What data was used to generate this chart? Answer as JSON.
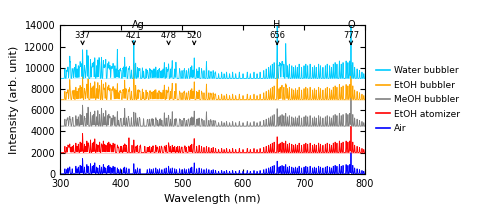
{
  "xlabel": "Wavelength (nm)",
  "ylabel": "Intensity (arb. unit)",
  "xlim": [
    300,
    800
  ],
  "ylim": [
    0,
    14000
  ],
  "yticks": [
    0,
    2000,
    4000,
    6000,
    8000,
    10000,
    12000,
    14000
  ],
  "offsets": [
    0,
    2000,
    4500,
    7000,
    9000
  ],
  "colors": [
    "#0000FF",
    "#FF0000",
    "#808080",
    "#FFA500",
    "#00CCFF"
  ],
  "labels": [
    "Air",
    "EtOH atomizer",
    "MeOH bubbler",
    "EtOH bubbler",
    "Water bubbler"
  ],
  "ann_wavelengths": [
    337,
    421,
    478,
    520,
    656,
    777
  ],
  "ann_labels": [
    "337",
    "421",
    "478",
    "520",
    "656",
    "777"
  ],
  "ag_bracket": [
    337,
    520
  ],
  "element_annotations": [
    {
      "wl": 428,
      "label": "Ag"
    },
    {
      "wl": 656,
      "label": "H"
    },
    {
      "wl": 777,
      "label": "O"
    }
  ],
  "seed": 42,
  "figsize": [
    5.0,
    2.12
  ],
  "dpi": 100
}
